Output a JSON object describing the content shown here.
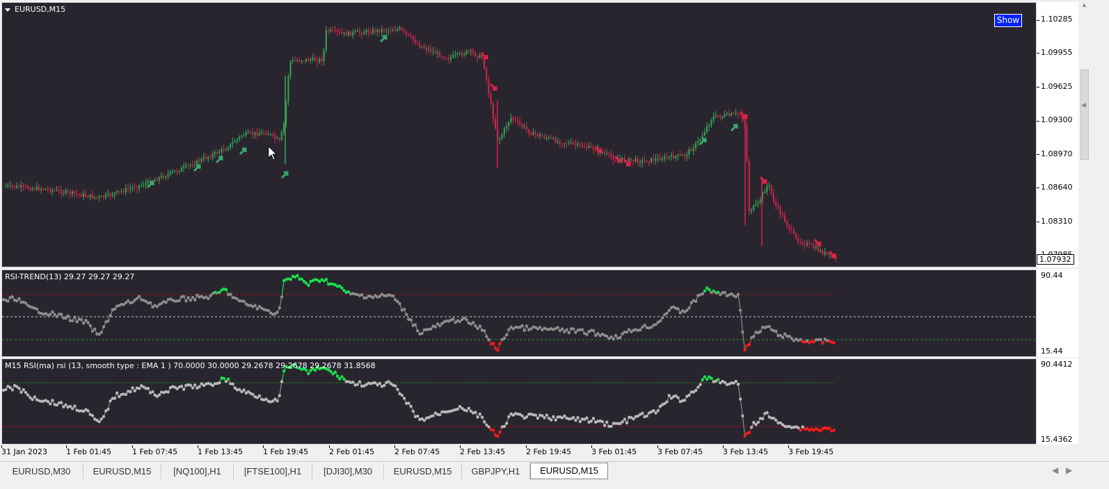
{
  "main_pane": {
    "title": "EURUSD,M15",
    "show_button": "Show",
    "price_labels": [
      "1.10285",
      "1.09955",
      "1.09625",
      "1.09300",
      "1.08970",
      "1.08640",
      "1.08310",
      "1.07985"
    ],
    "current_price": "1.07932"
  },
  "rsi_pane": {
    "title": "RSI-TREND(13) 29.27 29.27 29.27",
    "scale_top": "90.44",
    "scale_bottom": "15.44"
  },
  "rsi_ma_pane": {
    "title": "M15 RSI(ma) rsi (13, smooth type : EMA  1 ) 70.0000 30.0000 29.2678 29.2678 29.2678 31.8568",
    "scale_top": "90.4412",
    "scale_bottom": "15.4362"
  },
  "time_axis": [
    "31 Jan 2023",
    "1 Feb 01:45",
    "1 Feb 07:45",
    "1 Feb 13:45",
    "1 Feb 19:45",
    "2 Feb 01:45",
    "2 Feb 07:45",
    "2 Feb 13:45",
    "2 Feb 19:45",
    "3 Feb 01:45",
    "3 Feb 07:45",
    "3 Feb 13:45",
    "3 Feb 19:45"
  ],
  "tabs": [
    {
      "label": "EURUSD,M30",
      "active": false
    },
    {
      "label": "EURUSD,M15",
      "active": false
    },
    {
      "label": "[NQ100],H1",
      "active": false
    },
    {
      "label": "[FTSE100],H1",
      "active": false
    },
    {
      "label": "[DJI30],M30",
      "active": false
    },
    {
      "label": "EURUSD,M15",
      "active": false
    },
    {
      "label": "GBPJPY,H1",
      "active": false
    },
    {
      "label": "EURUSD,M15",
      "active": true
    }
  ],
  "colors": {
    "background": "#29252f",
    "bull_candle": "#36a853",
    "bear_candle": "#d4244a",
    "up_arrow": "#3aa86b",
    "down_arrow": "#e0214a",
    "rsi_gray": "#8c8c8c",
    "rsi_green": "#19e04c",
    "rsi_red": "#ff1a1a",
    "level_red": "#b3121e",
    "level_green": "#1a9a1a",
    "level_white": "#cfcfcf",
    "show_button": "#0022ff"
  },
  "icons": {
    "pane_collapse": "triangle-down-icon",
    "up_signal": "arrow-up-right-icon",
    "down_signal": "arrow-down-right-icon",
    "cursor": "mouse-pointer-icon",
    "tab_left": "chevron-left-icon",
    "tab_right": "chevron-right-icon"
  }
}
